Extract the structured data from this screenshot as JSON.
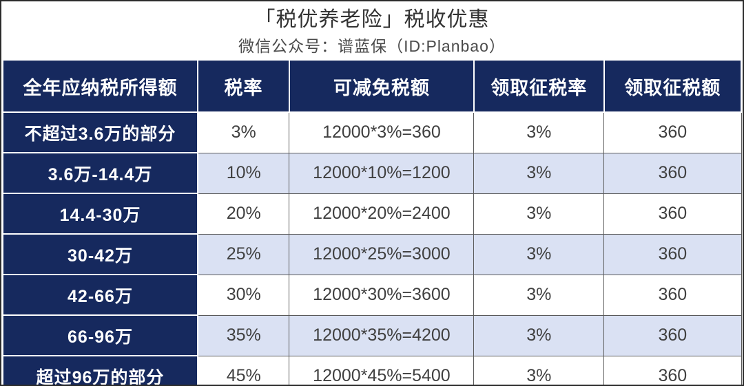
{
  "header": {
    "title": "「税优养老险」税收优惠",
    "subtitle": "微信公众号：谱蓝保（ID:Planbao）"
  },
  "table": {
    "columns": [
      "全年应纳税所得额",
      "税率",
      "可减免税额",
      "领取征税率",
      "领取征税额"
    ],
    "rows": [
      [
        "不超过3.6万的部分",
        "3%",
        "12000*3%=360",
        "3%",
        "360"
      ],
      [
        "3.6万-14.4万",
        "10%",
        "12000*10%=1200",
        "3%",
        "360"
      ],
      [
        "14.4-30万",
        "20%",
        "12000*20%=2400",
        "3%",
        "360"
      ],
      [
        "30-42万",
        "25%",
        "12000*25%=3000",
        "3%",
        "360"
      ],
      [
        "42-66万",
        "30%",
        "12000*30%=3600",
        "3%",
        "360"
      ],
      [
        "66-96万",
        "35%",
        "12000*35%=4200",
        "3%",
        "360"
      ],
      [
        "超过96万的部分",
        "45%",
        "12000*45%=5400",
        "3%",
        "360"
      ]
    ]
  },
  "colors": {
    "header_bg": "#16295e",
    "header_text": "#ffffff",
    "row_bg": "#ffffff",
    "row_alt_bg": "#dae1f3",
    "cell_text": "#404040",
    "grid_border": "#595959",
    "outer_border": "#2b2b2b"
  },
  "chart_data": {
    "type": "table",
    "title": "「税优养老险」税收优惠",
    "subtitle": "微信公众号：谱蓝保（ID:Planbao）",
    "columns": [
      "全年应纳税所得额",
      "税率",
      "可减免税额",
      "领取征税率",
      "领取征税额"
    ],
    "rows": [
      [
        "不超过3.6万的部分",
        "3%",
        "12000*3%=360",
        "3%",
        "360"
      ],
      [
        "3.6万-14.4万",
        "10%",
        "12000*10%=1200",
        "3%",
        "360"
      ],
      [
        "14.4-30万",
        "20%",
        "12000*20%=2400",
        "3%",
        "360"
      ],
      [
        "30-42万",
        "25%",
        "12000*25%=3000",
        "3%",
        "360"
      ],
      [
        "42-66万",
        "30%",
        "12000*30%=3600",
        "3%",
        "360"
      ],
      [
        "66-96万",
        "35%",
        "12000*35%=4200",
        "3%",
        "360"
      ],
      [
        "超过96万的部分",
        "45%",
        "12000*45%=5400",
        "3%",
        "360"
      ]
    ]
  }
}
